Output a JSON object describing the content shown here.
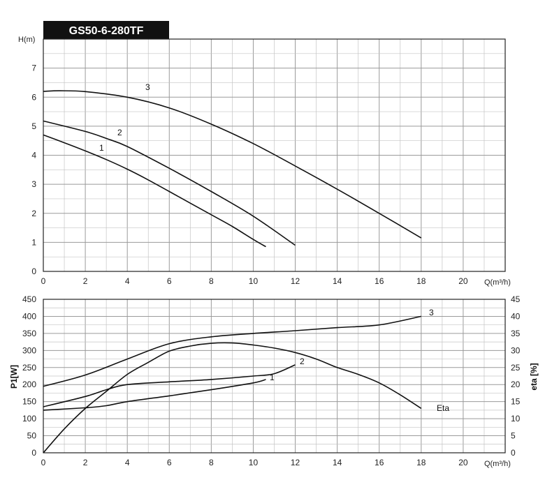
{
  "title": "GS50-6-280TF",
  "chart_data": [
    {
      "type": "line",
      "ylabel": "H(m)",
      "xlabel": "Q(m³/h)",
      "xlim": [
        0,
        22
      ],
      "ylim": [
        0,
        8
      ],
      "xticks": [
        0,
        2,
        4,
        6,
        8,
        10,
        12,
        14,
        16,
        18,
        20
      ],
      "yticks": [
        0,
        1,
        2,
        3,
        4,
        5,
        6,
        7
      ],
      "grid": true,
      "series": [
        {
          "name": "1",
          "points": [
            [
              0,
              4.7
            ],
            [
              1,
              4.43
            ],
            [
              2,
              4.15
            ],
            [
              3,
              3.85
            ],
            [
              4,
              3.52
            ],
            [
              5,
              3.15
            ],
            [
              6,
              2.75
            ],
            [
              7,
              2.35
            ],
            [
              8,
              1.95
            ],
            [
              9,
              1.55
            ],
            [
              10,
              1.1
            ],
            [
              10.6,
              0.85
            ]
          ]
        },
        {
          "name": "2",
          "points": [
            [
              0,
              5.18
            ],
            [
              2,
              4.82
            ],
            [
              3,
              4.58
            ],
            [
              4,
              4.3
            ],
            [
              6,
              3.55
            ],
            [
              8,
              2.75
            ],
            [
              10,
              1.9
            ],
            [
              12,
              0.9
            ]
          ]
        },
        {
          "name": "3",
          "points": [
            [
              0,
              6.2
            ],
            [
              0.8,
              6.22
            ],
            [
              2,
              6.19
            ],
            [
              4,
              6.0
            ],
            [
              6,
              5.63
            ],
            [
              8,
              5.07
            ],
            [
              10,
              4.4
            ],
            [
              12,
              3.63
            ],
            [
              14,
              2.83
            ],
            [
              16,
              2.0
            ],
            [
              18,
              1.15
            ]
          ]
        }
      ]
    },
    {
      "type": "line",
      "ylabel": "P1[W]",
      "y2label": "eta [%]",
      "xlabel": "Q(m³/h)",
      "xlim": [
        0,
        22
      ],
      "ylim": [
        0,
        450
      ],
      "y2lim": [
        0,
        45
      ],
      "xticks": [
        0,
        2,
        4,
        6,
        8,
        10,
        12,
        14,
        16,
        18,
        20
      ],
      "yticks": [
        0,
        50,
        100,
        150,
        200,
        250,
        300,
        350,
        400,
        450
      ],
      "y2ticks": [
        0,
        5,
        10,
        15,
        20,
        25,
        30,
        35,
        40,
        45
      ],
      "grid": true,
      "series": [
        {
          "name": "1",
          "axis": "left",
          "points": [
            [
              0,
              125
            ],
            [
              2,
              132
            ],
            [
              3,
              138
            ],
            [
              4,
              150
            ],
            [
              6,
              167
            ],
            [
              8,
              185
            ],
            [
              10,
              205
            ],
            [
              10.6,
              215
            ]
          ]
        },
        {
          "name": "2",
          "axis": "left",
          "points": [
            [
              0,
              135
            ],
            [
              2,
              165
            ],
            [
              3,
              185
            ],
            [
              4,
              200
            ],
            [
              6,
              208
            ],
            [
              8,
              215
            ],
            [
              10,
              225
            ],
            [
              11,
              232
            ],
            [
              12,
              258
            ]
          ]
        },
        {
          "name": "3",
          "axis": "left",
          "points": [
            [
              0,
              195
            ],
            [
              2,
              228
            ],
            [
              4,
              275
            ],
            [
              6,
              320
            ],
            [
              8,
              340
            ],
            [
              10,
              350
            ],
            [
              12,
              358
            ],
            [
              14,
              367
            ],
            [
              16,
              375
            ],
            [
              18,
              400
            ]
          ]
        },
        {
          "name": "Eta",
          "axis": "right",
          "points": [
            [
              0,
              0
            ],
            [
              1,
              7
            ],
            [
              2,
              13
            ],
            [
              3,
              18
            ],
            [
              4,
              23
            ],
            [
              5,
              26.5
            ],
            [
              6,
              29.8
            ],
            [
              7,
              31.3
            ],
            [
              8,
              32.1
            ],
            [
              9,
              32.2
            ],
            [
              10,
              31.6
            ],
            [
              11,
              30.7
            ],
            [
              12,
              29.4
            ],
            [
              13,
              27.5
            ],
            [
              14,
              25
            ],
            [
              15,
              23
            ],
            [
              16,
              20.5
            ],
            [
              17,
              17
            ],
            [
              18,
              13
            ]
          ]
        }
      ]
    }
  ]
}
